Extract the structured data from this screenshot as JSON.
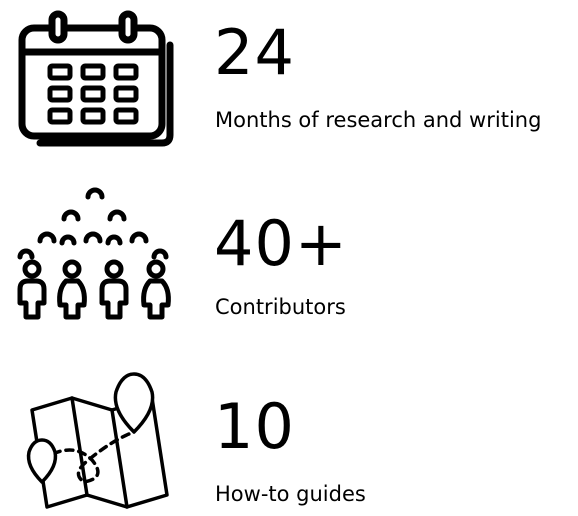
{
  "stats": [
    {
      "icon": "calendar-icon",
      "number": "24",
      "label": "Months of research and writing"
    },
    {
      "icon": "people-group-icon",
      "number": "40+",
      "label": "Contributors"
    },
    {
      "icon": "map-pin-icon",
      "number": "10",
      "label": "How-to guides"
    }
  ]
}
